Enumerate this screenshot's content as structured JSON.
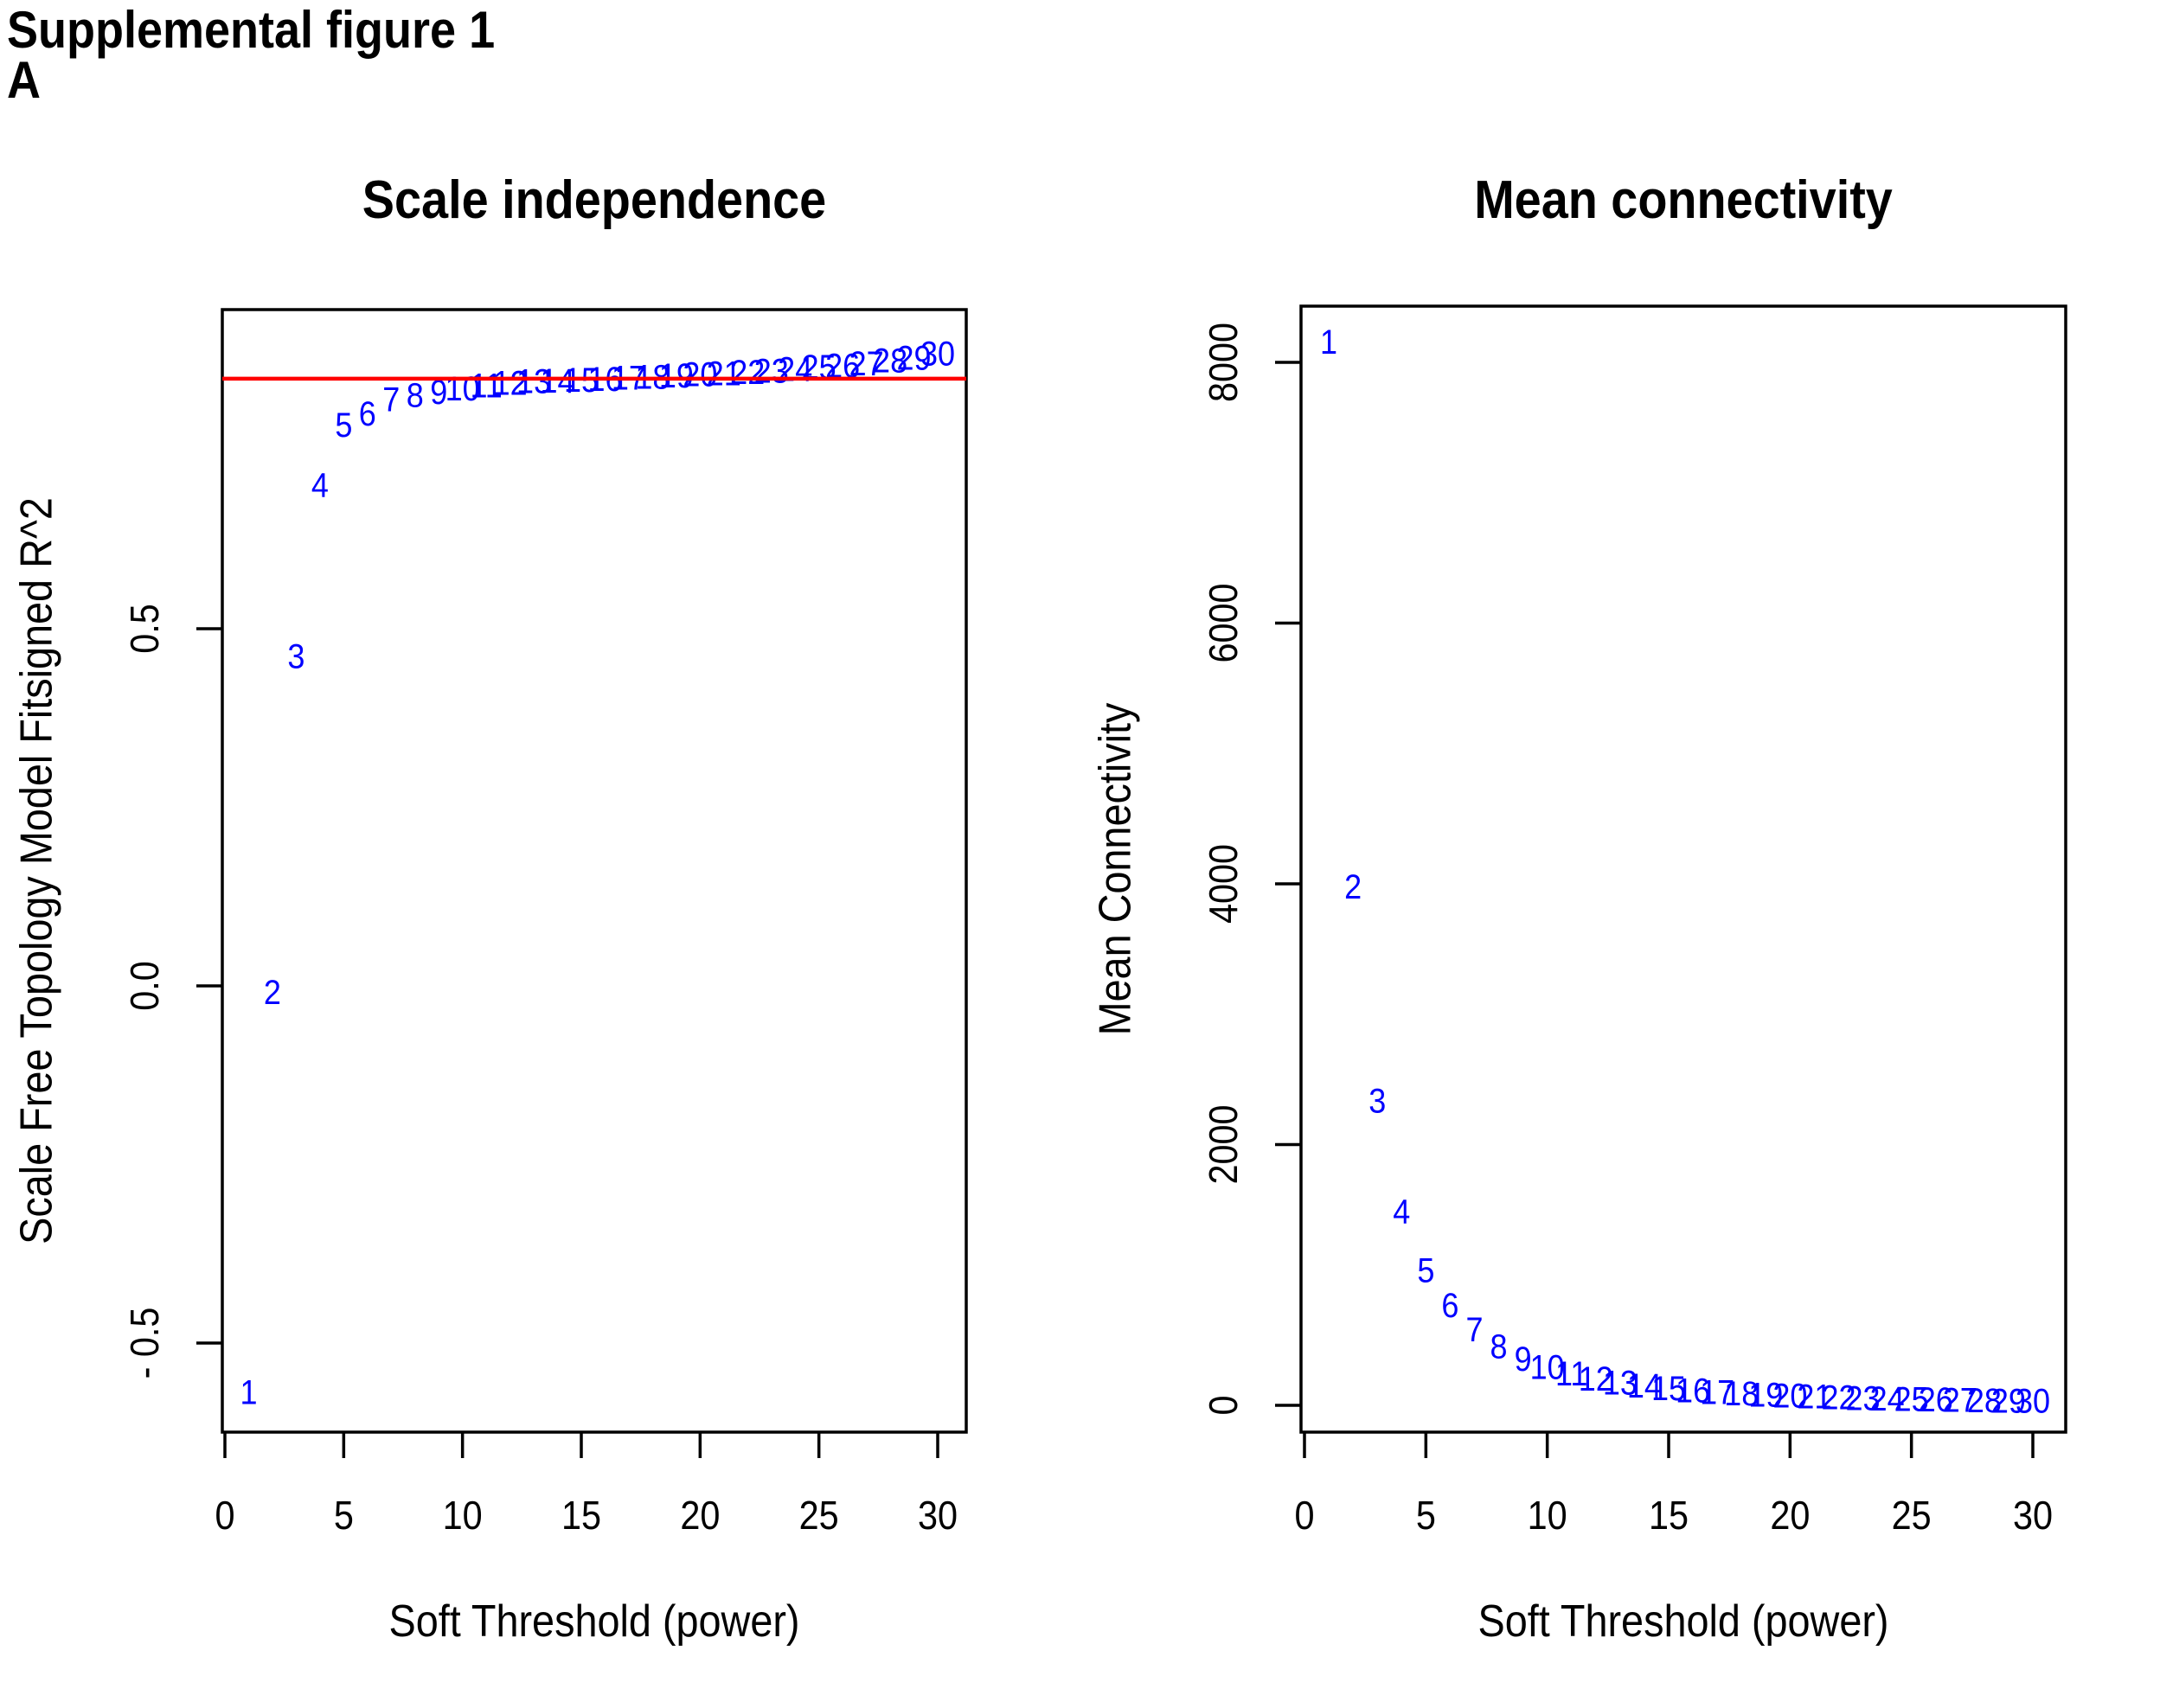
{
  "page": {
    "header": "Supplemental figure 1",
    "panel_label": "A"
  },
  "colors": {
    "points": "#0000ff",
    "threshold_line": "#ff0000",
    "axis": "#000000",
    "background": "#ffffff"
  },
  "chart_data": [
    {
      "type": "scatter",
      "title": "Scale independence",
      "xlabel": "Soft Threshold (power)",
      "ylabel": "Scale Free Topology Model Fitsigned R^2",
      "marker": "power-number-text",
      "grid": false,
      "xlim": [
        0,
        31
      ],
      "ylim": [
        -0.62,
        0.95
      ],
      "x_ticks": {
        "values": [
          0,
          5,
          10,
          15,
          20,
          25,
          30
        ],
        "labels": [
          "0",
          "5",
          "10",
          "15",
          "20",
          "25",
          "30"
        ]
      },
      "y_ticks": {
        "values": [
          -0.5,
          0,
          0.5
        ],
        "labels": [
          "- 0.5",
          "0.0",
          "0.5"
        ]
      },
      "threshold_line": {
        "y": 0.85,
        "color": "#ff0000"
      },
      "points": {
        "x": [
          1,
          2,
          3,
          4,
          5,
          6,
          7,
          8,
          9,
          10,
          11,
          12,
          13,
          14,
          15,
          16,
          17,
          18,
          19,
          20,
          21,
          22,
          23,
          24,
          25,
          26,
          27,
          28,
          29,
          30
        ],
        "y": [
          -0.57,
          -0.01,
          0.46,
          0.7,
          0.784,
          0.8,
          0.82,
          0.826,
          0.83,
          0.835,
          0.839,
          0.843,
          0.845,
          0.846,
          0.847,
          0.848,
          0.85,
          0.851,
          0.853,
          0.855,
          0.856,
          0.858,
          0.86,
          0.862,
          0.865,
          0.867,
          0.87,
          0.874,
          0.878,
          0.884
        ]
      }
    },
    {
      "type": "scatter",
      "title": "Mean connectivity",
      "xlabel": "Soft Threshold (power)",
      "ylabel": "Mean Connectivity",
      "marker": "power-number-text",
      "grid": false,
      "xlim": [
        0,
        31
      ],
      "ylim": [
        -200,
        8400
      ],
      "x_ticks": {
        "values": [
          0,
          5,
          10,
          15,
          20,
          25,
          30
        ],
        "labels": [
          "0",
          "5",
          "10",
          "15",
          "20",
          "25",
          "30"
        ]
      },
      "y_ticks": {
        "values": [
          0,
          2000,
          4000,
          6000,
          8000
        ],
        "labels": [
          "0",
          "2000",
          "4000",
          "6000",
          "8000"
        ]
      },
      "threshold_line": null,
      "points": {
        "x": [
          1,
          2,
          3,
          4,
          5,
          6,
          7,
          8,
          9,
          10,
          11,
          12,
          13,
          14,
          15,
          16,
          17,
          18,
          19,
          20,
          21,
          22,
          23,
          24,
          25,
          26,
          27,
          28,
          29,
          30
        ],
        "y": [
          8150,
          3970,
          2330,
          1480,
          1030,
          760,
          575,
          445,
          350,
          285,
          235,
          198,
          168,
          144,
          124,
          108,
          95,
          83,
          74,
          66,
          59,
          53,
          48,
          43,
          39,
          36,
          33,
          30,
          28,
          26
        ]
      }
    }
  ]
}
